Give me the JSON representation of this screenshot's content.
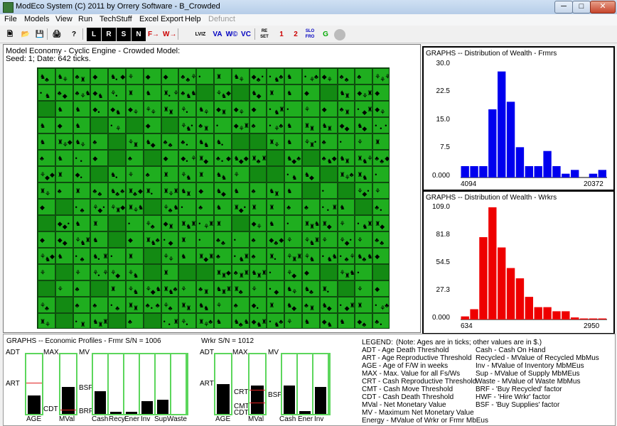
{
  "window": {
    "title": "ModEco System (C) 2011 by Orrery Software - B_Crowded",
    "min": "─",
    "max": "□",
    "close": "✕"
  },
  "menu": [
    "File",
    "Models",
    "View",
    "Run",
    "TechStuff",
    "Excel Export",
    "Help",
    "Defunct"
  ],
  "toolbar": [
    "L",
    "R",
    "S",
    "N",
    "F→",
    "W→",
    "LVIZ",
    "VA",
    "W©",
    "VC",
    "RE SET",
    "1",
    "2",
    "SLO FRO",
    "G",
    "stop"
  ],
  "model": {
    "title": "Model Economy - Cyclic Engine - Crowded Model:",
    "seed": "Seed: 1; Date: 642 ticks."
  },
  "hist_farmers": {
    "title": "GRAPHS -- Distribution of Wealth - Frmrs",
    "yticks": [
      "30.0",
      "22.5",
      "15.0",
      "7.5",
      "0.000"
    ],
    "xmin": "4094",
    "xmax": "20372",
    "color": "#0000ee"
  },
  "hist_workers": {
    "title": "GRAPHS -- Distribution of Wealth - Wrkrs",
    "yticks": [
      "109.0",
      "81.8",
      "54.5",
      "27.3",
      "0.000"
    ],
    "xmin": "634",
    "xmax": "2950",
    "color": "#ee0000"
  },
  "chart_data": [
    {
      "type": "bar",
      "title": "GRAPHS -- Distribution of Wealth - Frmrs",
      "ylim": [
        0,
        30
      ],
      "x_range": [
        4094,
        20372
      ],
      "values": [
        3,
        3,
        3,
        18,
        28,
        20,
        8,
        3,
        3,
        7,
        3,
        1,
        2,
        0,
        1,
        2
      ]
    },
    {
      "type": "bar",
      "title": "GRAPHS -- Distribution of Wealth - Wrkrs",
      "ylim": [
        0,
        109
      ],
      "x_range": [
        634,
        2950
      ],
      "values": [
        3,
        10,
        80,
        110,
        70,
        50,
        40,
        22,
        12,
        12,
        8,
        8,
        2,
        1,
        1,
        1
      ]
    }
  ],
  "profiles": {
    "title_frmr": "GRAPHS -- Economic Profiles - Frmr S/N = 1006",
    "title_wrkr": "Wrkr S/N = 1012",
    "labels": {
      "adt": "ADT",
      "art": "ART",
      "max": "MAX",
      "cdt": "CDT",
      "crt": "CRT",
      "cmt": "CMT",
      "mv": "MV",
      "bsf": "BSF",
      "brf": "BRF",
      "age": "AGE",
      "mval": "MVal",
      "cash": "Cash",
      "recy": "Recy",
      "ener": "Ener",
      "inv": "Inv",
      "sup": "Sup",
      "waste": "Waste"
    }
  },
  "legend": {
    "title": "LEGEND:",
    "note": "(Note: Ages are in ticks; other values are in $.)",
    "left": [
      "ADT - Age Death Threshold",
      "ART - Age Reproductive Threshold",
      "AGE - Age of F/W in weeks",
      "MAX - Max. Value for all Fs/Ws",
      "CRT - Cash Reproductive Threshold",
      "CMT - Cash Move Threshold",
      "CDT - Cash Death Threshold",
      "MVal - Net Monetary Value",
      "MV - Maximum Net Monetary Value",
      "Energy - MValue of Wrkr or Frmr MbEus"
    ],
    "right": [
      "Cash - Cash On Hand",
      "Recycled - MValue of Recycled MbMus",
      "Inv - MValue of Inventory MbMEus",
      "Sup - MValue of Supply MbMEus",
      "Waste - MValue of Waste MbMus",
      "BRF - 'Buy Recycled' factor",
      "HWF - 'Hire Wrkr' factor",
      "BSF - 'Buy Supplies' factor"
    ]
  }
}
